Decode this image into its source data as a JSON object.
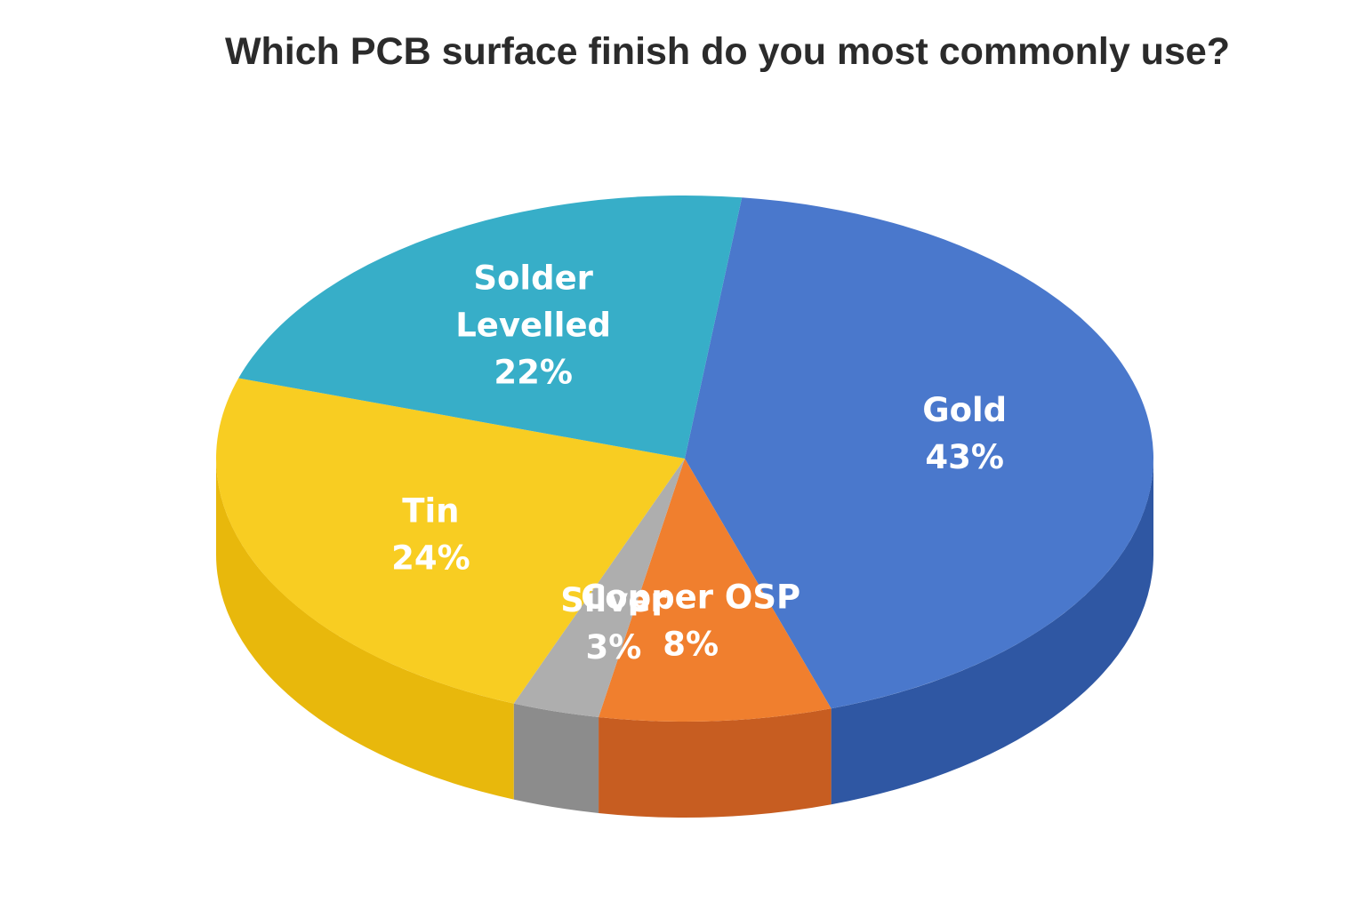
{
  "chart_data": {
    "type": "pie",
    "title": "Which PCB surface finish do you most commonly use?",
    "slices": [
      {
        "name": "Gold",
        "value": 43,
        "value_label": "43%",
        "color": "#4a78cc",
        "side_color": "#2f57a3"
      },
      {
        "name": "Copper OSP",
        "value": 8,
        "value_label": "8%",
        "color": "#f07f2e",
        "side_color": "#c75d21"
      },
      {
        "name": "Silver",
        "value": 3,
        "value_label": "3%",
        "color": "#aeaeae",
        "side_color": "#8c8c8c"
      },
      {
        "name": "Tin",
        "value": 24,
        "value_label": "24%",
        "color": "#f8cd22",
        "side_color": "#e8b80c"
      },
      {
        "name": "Solder Levelled",
        "value": 22,
        "value_label": "22%",
        "color": "#37aec8",
        "side_color": "#2a8ca1"
      }
    ]
  }
}
